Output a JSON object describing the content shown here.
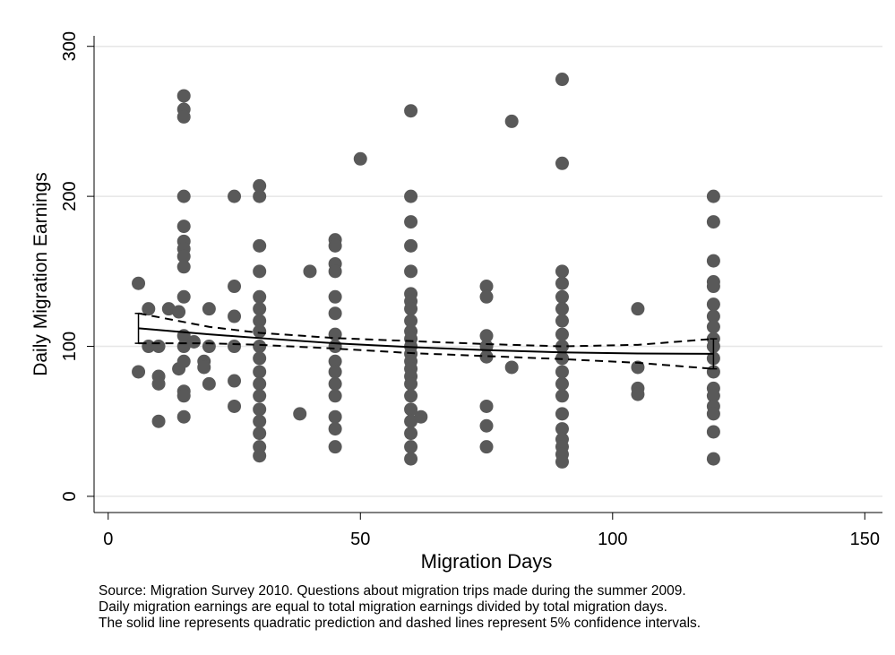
{
  "chart_data": {
    "type": "scatter",
    "x_label": "Migration Days",
    "y_label": "Daily Migration Earnings",
    "xlim": [
      -2.8,
      153.5
    ],
    "ylim": [
      -10.8,
      307
    ],
    "xticks": [
      0,
      50,
      100,
      150
    ],
    "yticks": [
      0,
      100,
      200,
      300
    ],
    "grid": true,
    "series": [
      {
        "type": "scatter",
        "color": "#595959",
        "x": [
          6,
          6,
          8,
          8,
          10,
          10,
          10,
          10,
          12,
          14,
          14,
          15,
          15,
          15,
          15,
          15,
          15,
          15,
          15,
          15,
          15,
          15,
          15,
          15,
          15,
          15,
          15,
          17,
          19,
          19,
          20,
          20,
          20,
          25,
          25,
          25,
          25,
          25,
          25,
          30,
          30,
          30,
          30,
          30,
          30,
          30,
          30,
          30,
          30,
          30,
          30,
          30,
          30,
          30,
          30,
          30,
          30,
          38,
          40,
          45,
          45,
          45,
          45,
          45,
          45,
          45,
          45,
          45,
          45,
          45,
          45,
          45,
          45,
          45,
          50,
          60,
          60,
          60,
          60,
          60,
          60,
          60,
          60,
          60,
          60,
          60,
          60,
          60,
          60,
          60,
          60,
          60,
          60,
          60,
          60,
          60,
          60,
          60,
          62,
          75,
          75,
          75,
          75,
          75,
          75,
          75,
          75,
          80,
          80,
          90,
          90,
          90,
          90,
          90,
          90,
          90,
          90,
          90,
          90,
          90,
          90,
          90,
          90,
          90,
          90,
          90,
          90,
          90,
          105,
          105,
          105,
          105,
          120,
          120,
          120,
          120,
          120,
          120,
          120,
          120,
          120,
          120,
          120,
          120,
          120,
          120,
          120,
          120,
          120,
          120
        ],
        "values": [
          142,
          83,
          125,
          100,
          100,
          80,
          75,
          50,
          125,
          123,
          85,
          267,
          258,
          253,
          200,
          180,
          170,
          165,
          160,
          153,
          133,
          107,
          100,
          90,
          70,
          67,
          53,
          103,
          90,
          86,
          125,
          100,
          75,
          200,
          140,
          120,
          100,
          77,
          60,
          207,
          200,
          167,
          150,
          133,
          125,
          117,
          110,
          100,
          92,
          83,
          75,
          67,
          58,
          50,
          42,
          33,
          27,
          55,
          150,
          171,
          167,
          155,
          150,
          133,
          122,
          108,
          100,
          90,
          83,
          75,
          67,
          53,
          45,
          33,
          225,
          257,
          200,
          183,
          167,
          150,
          135,
          130,
          125,
          117,
          110,
          105,
          100,
          95,
          90,
          85,
          80,
          75,
          67,
          58,
          50,
          42,
          33,
          25,
          53,
          140,
          133,
          107,
          100,
          93,
          60,
          47,
          33,
          250,
          86,
          278,
          222,
          150,
          142,
          133,
          125,
          117,
          108,
          100,
          92,
          83,
          75,
          67,
          55,
          45,
          38,
          33,
          28,
          23,
          125,
          86,
          72,
          68,
          200,
          183,
          157,
          143,
          140,
          128,
          120,
          113,
          105,
          100,
          92,
          83,
          72,
          67,
          60,
          55,
          43,
          25
        ]
      },
      {
        "type": "line",
        "style": "solid",
        "color": "#000000",
        "x": [
          6,
          20,
          30,
          45,
          60,
          75,
          90,
          105,
          120
        ],
        "values": [
          112,
          108,
          105.5,
          102,
          99.5,
          97.5,
          96,
          95.2,
          95
        ]
      },
      {
        "type": "line",
        "style": "dashed",
        "color": "#000000",
        "x": [
          6,
          20,
          30,
          45,
          60,
          75,
          90,
          105,
          120
        ],
        "values": [
          122,
          113,
          109,
          105.5,
          103.5,
          101.5,
          100,
          101,
          105
        ]
      },
      {
        "type": "line",
        "style": "dashed",
        "color": "#000000",
        "x": [
          6,
          20,
          30,
          45,
          60,
          75,
          90,
          105,
          120
        ],
        "values": [
          102,
          102,
          101,
          98.5,
          95.5,
          93.5,
          91.5,
          89,
          85
        ]
      }
    ],
    "notes": [
      "Source: Migration Survey 2010. Questions about migration trips made during the summer 2009.",
      "Daily migration earnings are equal to total migration earnings divided by total migration days.",
      "The solid line represents quadratic prediction and dashed lines represent 5% confidence intervals."
    ]
  }
}
